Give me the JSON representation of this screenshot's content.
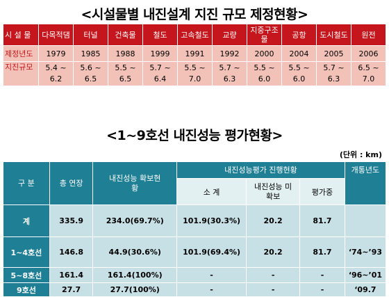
{
  "title1": "<시설물별 내진설계 지진 규모 제정현황>",
  "table1": {
    "header_label": "시 설 물",
    "columns": [
      "다목적댐",
      "터널",
      "건축물",
      "철도",
      "고속철도",
      "교량",
      "지중구조물",
      "공항",
      "도시철도",
      "원전"
    ],
    "row_year_label": "제정년도",
    "years": [
      "1979",
      "1985",
      "1988",
      "1999",
      "1991",
      "1992",
      "2000",
      "2004",
      "2005",
      "2006"
    ],
    "row_scale_label": "지진규모",
    "scales": [
      "5.4 ~ 6.2",
      "5.6 ~ 6.5",
      "5.5 ~ 6.5",
      "5.7 ~ 6.4",
      "5.5 ~ 7.0",
      "5.7 ~ 6.3",
      "5.5 ~ 6.0",
      "5.5 ~ 6.0",
      "5.7 ~ 6.3",
      "6.5 ~ 7.0"
    ]
  },
  "title2": "<1~9호선 내진성능 평가현황>",
  "unit": "(단위 : km)",
  "table2": {
    "headers": {
      "gubun": "구 분",
      "total": "총 연장",
      "secured": "내진성능 확보현황",
      "progress": "내진성능평가 진행현황",
      "opened": "개통년도",
      "sub_total": "소 계",
      "sub_unsecured": "내진성능 미확보",
      "sub_evaluating": "평가중"
    },
    "rows": [
      {
        "name": "계",
        "total": "335.9",
        "secured": "234.0(69.7%)",
        "sub_total": "101.9(30.3%)",
        "unsecured": "20.2",
        "evaluating": "81.7",
        "opened": ""
      },
      {
        "name": "1~4호선",
        "total": "146.8",
        "secured": "44.9(30.6%)",
        "sub_total": "101.9(69.4%)",
        "unsecured": "20.2",
        "evaluating": "81.7",
        "opened": "‘74~’93"
      },
      {
        "name": "5~8호선",
        "total": "161.4",
        "secured": "161.4(100%)",
        "sub_total": "-",
        "unsecured": "-",
        "evaluating": "-",
        "opened": "‘96~’01"
      },
      {
        "name": "9호선",
        "total": "27.7",
        "secured": "27.7(100%)",
        "sub_total": "-",
        "unsecured": "-",
        "evaluating": "-",
        "opened": "‘09.7"
      }
    ]
  },
  "colors": {
    "red": "#c4161c",
    "pink": "#f2c2b8",
    "teal": "#1f7f95",
    "light_teal": "#c7e0e6"
  }
}
